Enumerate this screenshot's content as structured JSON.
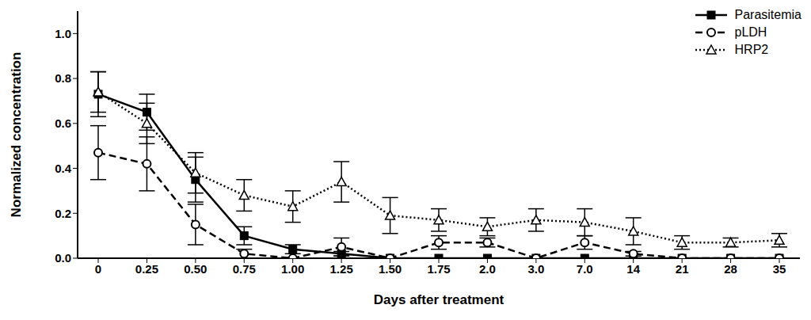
{
  "chart_data": {
    "type": "line",
    "x_label": "Days after treatment",
    "y_label": "Normalized concentration",
    "categories": [
      "0",
      "0.25",
      "0.50",
      "0.75",
      "1.00",
      "1.25",
      "1.50",
      "1.75",
      "2.0",
      "3.0",
      "7.0",
      "14",
      "21",
      "28",
      "35"
    ],
    "ylim": [
      0,
      1.1
    ],
    "yticks": [
      {
        "value": 0,
        "label": "0.0"
      },
      {
        "value": 0.2,
        "label": "0.2"
      },
      {
        "value": 0.4,
        "label": "0.4"
      },
      {
        "value": 0.6,
        "label": "0.6"
      },
      {
        "value": 0.8,
        "label": "0.8"
      },
      {
        "value": 1.0,
        "label": "1.0"
      }
    ],
    "grid": false,
    "legend": "top-right",
    "series": [
      {
        "name": "Parasitemia",
        "color": "#000000",
        "marker": "square",
        "line_style": "solid",
        "values": [
          0.73,
          0.65,
          0.35,
          0.1,
          0.04,
          0.02,
          0.0,
          0.0,
          0.0,
          0.0,
          0.0,
          0.0,
          0.0,
          0.0,
          0.0
        ],
        "error": [
          0.1,
          0.08,
          0.1,
          0.04,
          0.02,
          0.01,
          0.0,
          0.0,
          0.0,
          0.0,
          0.0,
          0.0,
          0.0,
          0.0,
          0.0
        ]
      },
      {
        "name": "pLDH",
        "color": "#000000",
        "marker": "circle",
        "line_style": "dashed",
        "values": [
          0.47,
          0.42,
          0.15,
          0.02,
          0.0,
          0.05,
          0.0,
          0.07,
          0.07,
          0.0,
          0.07,
          0.02,
          0.0,
          0.0,
          0.0
        ],
        "error": [
          0.12,
          0.12,
          0.09,
          0.02,
          0.0,
          0.04,
          0.0,
          0.03,
          0.02,
          0.0,
          0.03,
          0.01,
          0.0,
          0.0,
          0.0
        ]
      },
      {
        "name": "HRP2",
        "color": "#000000",
        "marker": "triangle",
        "line_style": "dotted",
        "values": [
          0.74,
          0.6,
          0.38,
          0.28,
          0.23,
          0.34,
          0.19,
          0.17,
          0.14,
          0.17,
          0.16,
          0.12,
          0.07,
          0.07,
          0.08
        ],
        "error": [
          0.09,
          0.09,
          0.09,
          0.07,
          0.07,
          0.09,
          0.08,
          0.05,
          0.04,
          0.05,
          0.06,
          0.06,
          0.03,
          0.02,
          0.03
        ]
      }
    ]
  }
}
